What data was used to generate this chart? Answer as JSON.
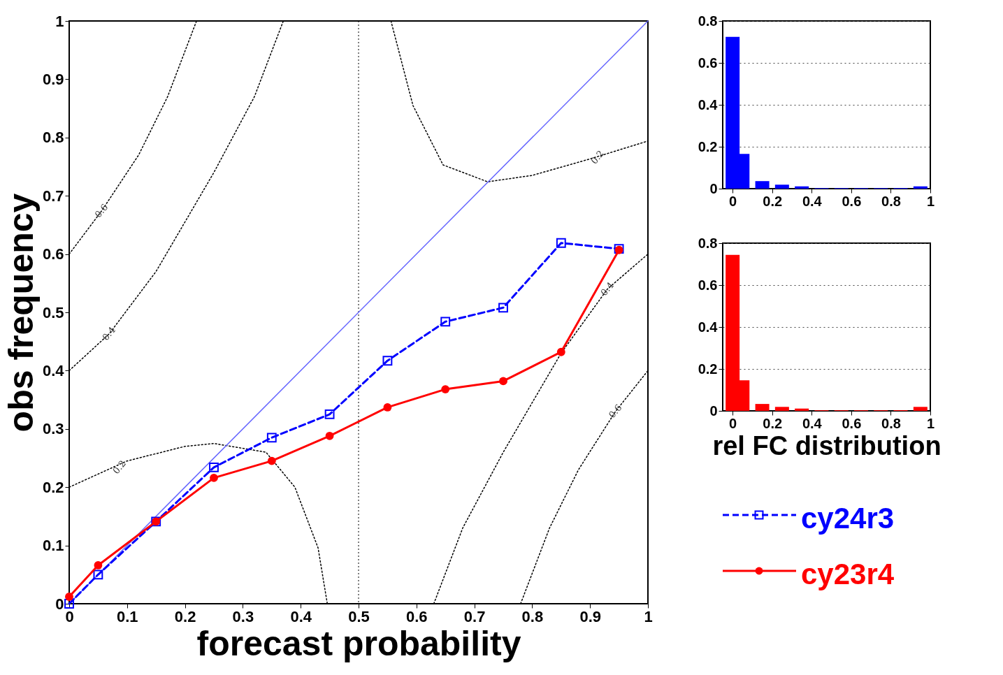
{
  "chart_data": [
    {
      "type": "line",
      "xlabel": "forecast probability",
      "ylabel": "obs frequency",
      "xlim": [
        0,
        1
      ],
      "ylim": [
        0,
        1
      ],
      "xticks": [
        0,
        0.1,
        0.2,
        0.3,
        0.4,
        0.5,
        0.6,
        0.7,
        0.8,
        0.9,
        1
      ],
      "yticks": [
        0,
        0.1,
        0.2,
        0.3,
        0.4,
        0.5,
        0.6,
        0.7,
        0.8,
        0.9,
        1
      ],
      "grid": false,
      "legend": "right",
      "series": [
        {
          "type": "line",
          "color": "#000000",
          "line_style": "dotted",
          "marker": "none",
          "x": [
            0,
            0.1,
            0.2,
            0.25,
            0.34,
            0.39,
            0.43,
            0.446
          ],
          "values": [
            0.2,
            0.245,
            0.27,
            0.275,
            0.26,
            0.2,
            0.096,
            0
          ]
        },
        {
          "type": "line",
          "color": "#000000",
          "line_style": "dotted",
          "marker": "none",
          "x": [
            0.556,
            0.594,
            0.646,
            0.723,
            0.8,
            0.899,
            1
          ],
          "values": [
            1,
            0.855,
            0.753,
            0.724,
            0.735,
            0.763,
            0.794
          ]
        },
        {
          "type": "line",
          "color": "#6666ff",
          "line_style": "solid",
          "marker": "none",
          "x": [
            0,
            1
          ],
          "values": [
            0,
            1
          ]
        },
        {
          "type": "line",
          "color": "#000000",
          "line_style": "dotted",
          "marker": "none",
          "x": [
            0,
            0.056,
            0.12,
            0.17,
            0.22
          ],
          "values": [
            0.6,
            0.674,
            0.77,
            0.87,
            1
          ]
        },
        {
          "type": "line",
          "color": "#000000",
          "line_style": "dotted",
          "marker": "none",
          "x": [
            0,
            0.069,
            0.15,
            0.25,
            0.32,
            0.37
          ],
          "values": [
            0.4,
            0.463,
            0.57,
            0.74,
            0.87,
            1
          ]
        },
        {
          "type": "line",
          "color": "#000000",
          "line_style": "dotted",
          "marker": "none",
          "x": [
            0.63,
            0.68,
            0.75,
            0.85,
            0.93,
            1
          ],
          "values": [
            0,
            0.13,
            0.26,
            0.43,
            0.54,
            0.6
          ]
        },
        {
          "type": "line",
          "color": "#000000",
          "line_style": "dotted",
          "marker": "none",
          "x": [
            0.78,
            0.83,
            0.88,
            0.944,
            1
          ],
          "values": [
            0,
            0.13,
            0.23,
            0.33,
            0.4
          ]
        },
        {
          "name": "cy24r3",
          "type": "line",
          "color": "#0000ff",
          "line_style": "dashed",
          "marker": "square",
          "x": [
            0,
            0.05,
            0.15,
            0.25,
            0.35,
            0.45,
            0.55,
            0.65,
            0.75,
            0.85,
            0.95
          ],
          "values": [
            0,
            0.05,
            0.141,
            0.234,
            0.285,
            0.325,
            0.417,
            0.484,
            0.508,
            0.619,
            0.609
          ]
        },
        {
          "name": "cy23r4",
          "type": "line",
          "color": "#ff0000",
          "line_style": "solid",
          "marker": "circle",
          "x": [
            0,
            0.05,
            0.15,
            0.25,
            0.35,
            0.45,
            0.55,
            0.65,
            0.75,
            0.85,
            0.95
          ],
          "values": [
            0.012,
            0.066,
            0.141,
            0.216,
            0.245,
            0.288,
            0.337,
            0.368,
            0.382,
            0.432,
            0.607
          ]
        }
      ],
      "ref_lines": [
        {
          "axis": "x",
          "value": 0.5,
          "color": "#000000",
          "line_style": "dotted"
        }
      ],
      "annotations": [
        {
          "text": "0.6",
          "x": 0.056,
          "y": 0.674
        },
        {
          "text": "0.4",
          "x": 0.069,
          "y": 0.463
        },
        {
          "text": "0.2",
          "x": 0.087,
          "y": 0.234
        },
        {
          "text": "0.2",
          "x": 0.913,
          "y": 0.766
        },
        {
          "text": "0.4",
          "x": 0.93,
          "y": 0.54
        },
        {
          "text": "0.6",
          "x": 0.944,
          "y": 0.33
        }
      ]
    },
    {
      "type": "bar",
      "x": [
        0,
        0.05,
        0.15,
        0.25,
        0.35,
        0.45,
        0.55,
        0.65,
        0.75,
        0.85,
        0.95
      ],
      "values": [
        0.724,
        0.166,
        0.036,
        0.019,
        0.011,
        0.003,
        0.003,
        0.003,
        0.003,
        0.003,
        0.011
      ],
      "color": "#0000ff",
      "xlim": [
        -0.05,
        1
      ],
      "xticks": [
        0,
        0.2,
        0.4,
        0.6,
        0.8,
        1
      ],
      "ylim": [
        0,
        0.8
      ],
      "yticks": [
        0,
        0.2,
        0.4,
        0.6,
        0.8
      ],
      "grid": "y"
    },
    {
      "type": "bar",
      "x": [
        0,
        0.05,
        0.15,
        0.25,
        0.35,
        0.45,
        0.55,
        0.65,
        0.75,
        0.85,
        0.95
      ],
      "values": [
        0.744,
        0.146,
        0.033,
        0.019,
        0.011,
        0.003,
        0.003,
        0.003,
        0.003,
        0.003,
        0.019
      ],
      "color": "#ff0000",
      "xlabel": "rel FC distribution",
      "xlim": [
        -0.05,
        1
      ],
      "xticks": [
        0,
        0.2,
        0.4,
        0.6,
        0.8,
        1
      ],
      "ylim": [
        0,
        0.8
      ],
      "yticks": [
        0,
        0.2,
        0.4,
        0.6,
        0.8
      ],
      "grid": "y"
    }
  ]
}
